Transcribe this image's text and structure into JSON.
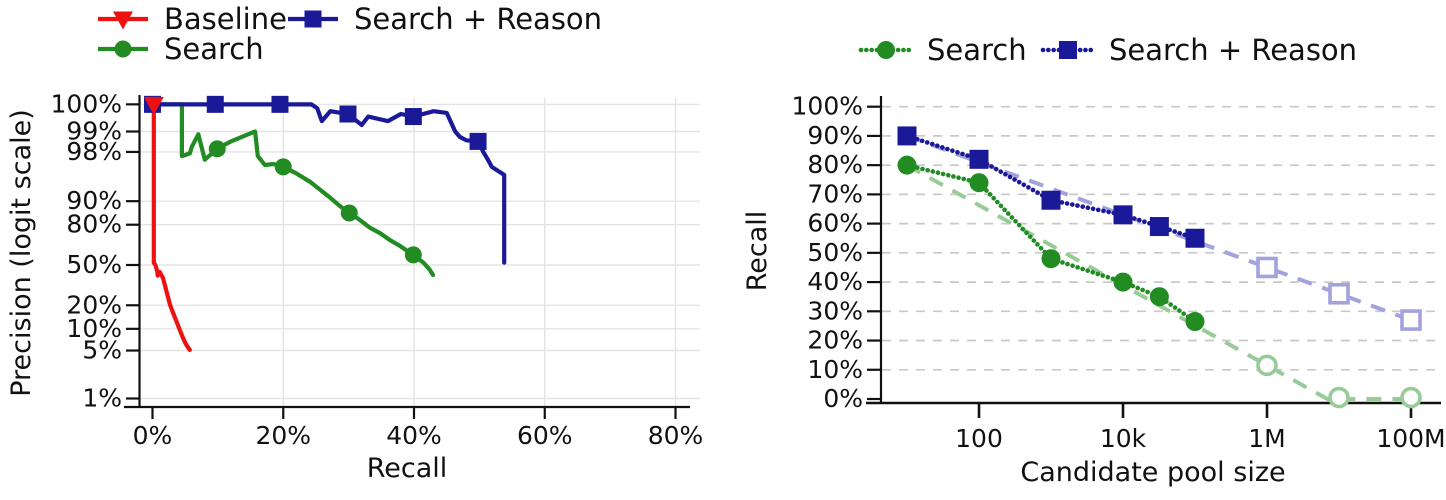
{
  "page": {
    "background": "#ffffff",
    "text_color": "#111111"
  },
  "chart_data": [
    {
      "id": "pr_curve",
      "type": "line",
      "title": "",
      "xlabel": "Recall",
      "ylabel": "Precision (logit scale)",
      "y_scale": "logit",
      "x_range": [
        0,
        80
      ],
      "grid": true,
      "legend_position": "top-left",
      "legend": [
        "Baseline",
        "Search",
        "Search + Reason"
      ],
      "x_ticks": [
        {
          "label": "0%",
          "value": 0
        },
        {
          "label": "20%",
          "value": 20
        },
        {
          "label": "40%",
          "value": 40
        },
        {
          "label": "60%",
          "value": 60
        },
        {
          "label": "80%",
          "value": 80
        }
      ],
      "y_ticks": [
        {
          "label": "100%",
          "value": 100
        },
        {
          "label": "99%",
          "value": 99
        },
        {
          "label": "98%",
          "value": 98
        },
        {
          "label": "90%",
          "value": 90
        },
        {
          "label": "80%",
          "value": 80
        },
        {
          "label": "50%",
          "value": 50
        },
        {
          "label": "20%",
          "value": 20
        },
        {
          "label": "10%",
          "value": 10
        },
        {
          "label": "5%",
          "value": 5
        },
        {
          "label": "1%",
          "value": 1
        }
      ],
      "series": [
        {
          "name": "Search",
          "color": "#228B22",
          "marker": "circle",
          "line": "solid",
          "points": [
            [
              0,
              100
            ],
            [
              4.5,
              100
            ],
            [
              4.5,
              97.7
            ],
            [
              5.7,
              97.9
            ],
            [
              6.0,
              98.3
            ],
            [
              7.0,
              98.9
            ],
            [
              8.0,
              97.4
            ],
            [
              9.9,
              98.2
            ],
            [
              12,
              98.6
            ],
            [
              15.7,
              99.0
            ],
            [
              16.1,
              97.7
            ],
            [
              17.2,
              96.9
            ],
            [
              18.5,
              97.0
            ],
            [
              20,
              96.7
            ],
            [
              22,
              95.9
            ],
            [
              24.1,
              94.6
            ],
            [
              26,
              92.6
            ],
            [
              27.2,
              91.0
            ],
            [
              28.6,
              88.5
            ],
            [
              30.1,
              85.7
            ],
            [
              31.5,
              83
            ],
            [
              33.3,
              78.2
            ],
            [
              34.8,
              75
            ],
            [
              36.3,
              70.3
            ],
            [
              37.8,
              66
            ],
            [
              39.9,
              58.6
            ],
            [
              41.5,
              51.7
            ],
            [
              42.4,
              46
            ],
            [
              42.9,
              41.5
            ]
          ],
          "marker_points": [
            [
              0,
              100
            ],
            [
              9.9,
              98.2
            ],
            [
              20,
              96.7
            ],
            [
              30.1,
              85.7
            ],
            [
              39.9,
              58.6
            ]
          ]
        },
        {
          "name": "Search + Reason",
          "color": "#1a1a99",
          "marker": "square",
          "line": "solid",
          "points": [
            [
              0,
              99.65
            ],
            [
              9.6,
              99.65
            ],
            [
              19.5,
              99.65
            ],
            [
              24.3,
              99.7
            ],
            [
              25.2,
              99.55
            ],
            [
              25.9,
              99.3
            ],
            [
              27.2,
              99.5
            ],
            [
              29.9,
              99.45
            ],
            [
              32,
              99.2
            ],
            [
              33,
              99.4
            ],
            [
              36,
              99.3
            ],
            [
              38,
              99.45
            ],
            [
              39.9,
              99.4
            ],
            [
              43,
              99.5
            ],
            [
              45,
              99.47
            ],
            [
              46.3,
              99.0
            ],
            [
              47,
              98.8
            ],
            [
              48,
              98.65
            ],
            [
              49.8,
              98.6
            ],
            [
              50.6,
              98.0
            ],
            [
              51.3,
              97.4
            ],
            [
              51.9,
              96.7
            ],
            [
              52.7,
              96.3
            ],
            [
              53.8,
              95.7
            ],
            [
              53.8,
              52
            ]
          ],
          "marker_points": [
            [
              0,
              99.65
            ],
            [
              9.6,
              99.65
            ],
            [
              19.5,
              99.65
            ],
            [
              29.9,
              99.45
            ],
            [
              39.9,
              99.4
            ],
            [
              49.8,
              98.6
            ]
          ]
        },
        {
          "name": "Baseline",
          "color": "#ee1111",
          "marker": "triangle-down",
          "line": "solid",
          "points": [
            [
              0.2,
              100
            ],
            [
              0.2,
              52
            ],
            [
              0.45,
              50
            ],
            [
              0.75,
              44
            ],
            [
              0.8,
              41
            ],
            [
              1.1,
              44
            ],
            [
              1.6,
              39
            ],
            [
              2.1,
              29.5
            ],
            [
              2.7,
              20
            ],
            [
              3.1,
              16.5
            ],
            [
              3.6,
              13
            ],
            [
              4.2,
              9.5
            ],
            [
              4.7,
              7.4
            ],
            [
              5.1,
              6.2
            ],
            [
              5.4,
              5.6
            ],
            [
              5.7,
              5.1
            ]
          ],
          "marker_points": [
            [
              0.2,
              100
            ]
          ]
        }
      ]
    },
    {
      "id": "recall_vs_pool",
      "type": "line",
      "title": "",
      "xlabel": "Candidate pool size",
      "ylabel": "Recall",
      "x_scale": "log",
      "grid": "dashed-horizontal",
      "legend_position": "top",
      "legend": [
        "Search",
        "Search + Reason"
      ],
      "x_ticks": [
        {
          "label": "100",
          "value": 100
        },
        {
          "label": "10k",
          "value": 10000
        },
        {
          "label": "1M",
          "value": 1000000
        },
        {
          "label": "100M",
          "value": 100000000
        }
      ],
      "y_ticks": [
        {
          "label": "100%",
          "value": 100
        },
        {
          "label": "90%",
          "value": 90
        },
        {
          "label": "80%",
          "value": 80
        },
        {
          "label": "70%",
          "value": 70
        },
        {
          "label": "60%",
          "value": 60
        },
        {
          "label": "50%",
          "value": 50
        },
        {
          "label": "40%",
          "value": 40
        },
        {
          "label": "30%",
          "value": 30
        },
        {
          "label": "20%",
          "value": 20
        },
        {
          "label": "10%",
          "value": 10
        },
        {
          "label": "0%",
          "value": 0
        }
      ],
      "series": [
        {
          "name": "Search",
          "color": "#228B22",
          "light_color": "#97cb97",
          "marker": "circle",
          "line": "dotted",
          "solid_points": [
            [
              10,
              80
            ],
            [
              100,
              74
            ],
            [
              1000,
              48
            ],
            [
              10000,
              40
            ],
            [
              32000,
              35
            ],
            [
              100000,
              26.5
            ]
          ],
          "open_points": [
            [
              1000000,
              11.5
            ],
            [
              10000000,
              0.5
            ],
            [
              100000000,
              0.5
            ]
          ],
          "trend_points": [
            [
              10,
              80
            ],
            [
              6900000,
              0
            ],
            [
              100000000,
              0
            ]
          ]
        },
        {
          "name": "Search + Reason",
          "color": "#1a1a99",
          "light_color": "#a2a2dc",
          "marker": "square",
          "line": "dotted",
          "solid_points": [
            [
              10,
              90
            ],
            [
              100,
              82
            ],
            [
              1000,
              68
            ],
            [
              10000,
              63
            ],
            [
              32000,
              59
            ],
            [
              100000,
              55
            ]
          ],
          "open_points": [
            [
              1000000,
              45
            ],
            [
              10000000,
              36
            ],
            [
              100000000,
              27
            ]
          ],
          "trend_points": [
            [
              10,
              90
            ],
            [
              100000000,
              27
            ]
          ]
        }
      ]
    }
  ]
}
